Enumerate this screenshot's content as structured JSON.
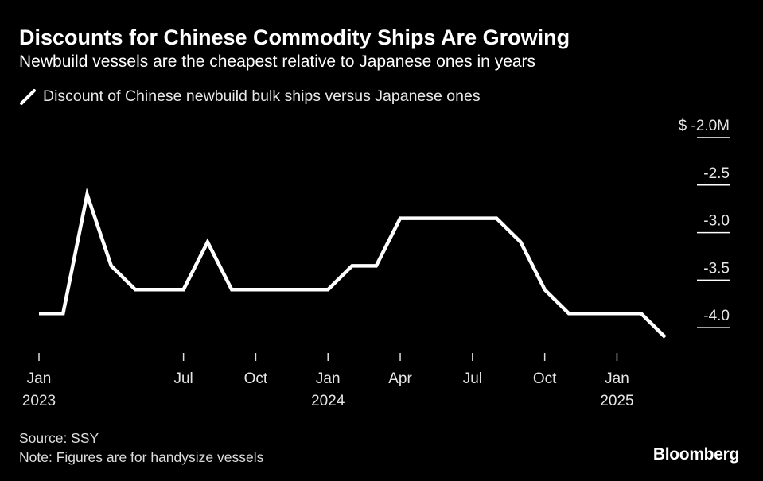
{
  "title": "Discounts for Chinese Commodity Ships Are Growing",
  "subtitle": "Newbuild vessels are the cheapest relative to Japanese ones in years",
  "legend": {
    "label": "Discount of Chinese newbuild bulk ships versus Japanese ones",
    "color": "#ffffff"
  },
  "source": "Source: SSY",
  "note": "Note: Figures are for handysize vessels",
  "brand": "Bloomberg",
  "colors": {
    "background": "#000000",
    "line": "#ffffff",
    "gridline": "#ffffff"
  },
  "chart_data": {
    "type": "line",
    "title": "Discounts for Chinese Commodity Ships Are Growing",
    "subtitle": "Newbuild vessels are the cheapest relative to Japanese ones in years",
    "xlabel": "",
    "ylabel": "",
    "y_axis_position": "right",
    "ylim": [
      -4.3,
      -2.0
    ],
    "y_ticks": [
      {
        "value": -2.0,
        "label": "$ -2.0M"
      },
      {
        "value": -2.5,
        "label": "-2.5"
      },
      {
        "value": -3.0,
        "label": "-3.0"
      },
      {
        "value": -3.5,
        "label": "-3.5"
      },
      {
        "value": -4.0,
        "label": "-4.0"
      }
    ],
    "x_range": [
      "2023-01-01",
      "2025-03-01"
    ],
    "x_ticks": [
      {
        "date": "2023-01-01",
        "label": "Jan",
        "year": "2023"
      },
      {
        "date": "2023-07-01",
        "label": "Jul",
        "year": ""
      },
      {
        "date": "2023-10-01",
        "label": "Oct",
        "year": ""
      },
      {
        "date": "2024-01-01",
        "label": "Jan",
        "year": "2024"
      },
      {
        "date": "2024-04-01",
        "label": "Apr",
        "year": ""
      },
      {
        "date": "2024-07-01",
        "label": "Jul",
        "year": ""
      },
      {
        "date": "2024-10-01",
        "label": "Oct",
        "year": ""
      },
      {
        "date": "2025-01-01",
        "label": "Jan",
        "year": "2025"
      }
    ],
    "series": [
      {
        "name": "Discount of Chinese newbuild bulk ships versus Japanese ones",
        "unit": "$M",
        "points": [
          {
            "x": "2023-01-01",
            "y": -3.85
          },
          {
            "x": "2023-02-01",
            "y": -3.85
          },
          {
            "x": "2023-03-01",
            "y": -2.6
          },
          {
            "x": "2023-04-01",
            "y": -3.35
          },
          {
            "x": "2023-05-01",
            "y": -3.6
          },
          {
            "x": "2023-06-01",
            "y": -3.6
          },
          {
            "x": "2023-07-01",
            "y": -3.6
          },
          {
            "x": "2023-08-01",
            "y": -3.1
          },
          {
            "x": "2023-09-01",
            "y": -3.6
          },
          {
            "x": "2023-10-01",
            "y": -3.6
          },
          {
            "x": "2023-11-01",
            "y": -3.6
          },
          {
            "x": "2023-12-01",
            "y": -3.6
          },
          {
            "x": "2024-01-01",
            "y": -3.6
          },
          {
            "x": "2024-02-01",
            "y": -3.35
          },
          {
            "x": "2024-03-01",
            "y": -3.35
          },
          {
            "x": "2024-04-01",
            "y": -2.85
          },
          {
            "x": "2024-05-01",
            "y": -2.85
          },
          {
            "x": "2024-06-01",
            "y": -2.85
          },
          {
            "x": "2024-07-01",
            "y": -2.85
          },
          {
            "x": "2024-08-01",
            "y": -2.85
          },
          {
            "x": "2024-09-01",
            "y": -3.1
          },
          {
            "x": "2024-10-01",
            "y": -3.6
          },
          {
            "x": "2024-11-01",
            "y": -3.85
          },
          {
            "x": "2024-12-01",
            "y": -3.85
          },
          {
            "x": "2025-01-01",
            "y": -3.85
          },
          {
            "x": "2025-02-01",
            "y": -3.85
          },
          {
            "x": "2025-03-01",
            "y": -4.1
          }
        ]
      }
    ]
  }
}
